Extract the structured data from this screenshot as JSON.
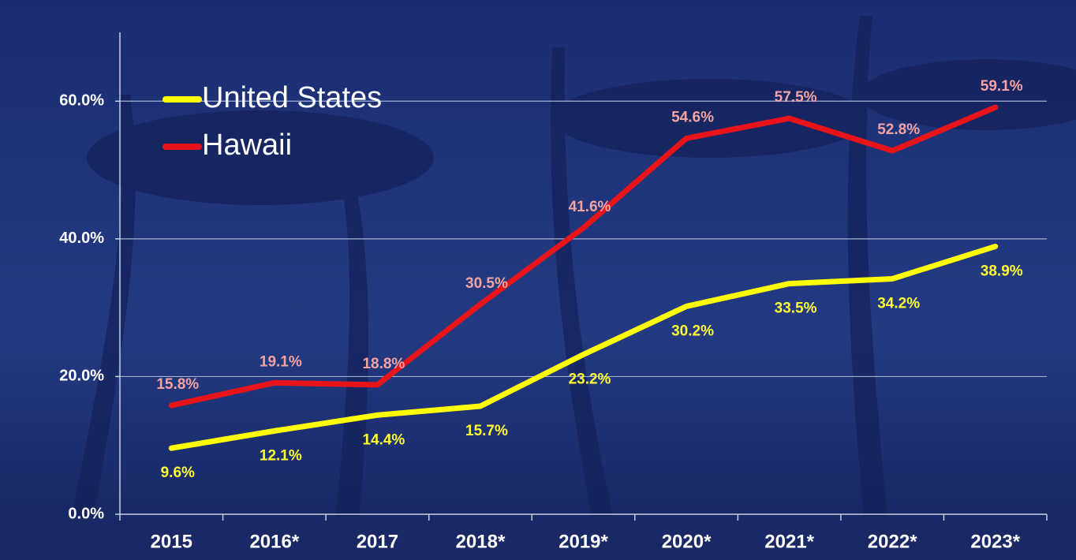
{
  "chart_data": {
    "type": "line",
    "categories": [
      "2015",
      "2016*",
      "2017",
      "2018*",
      "2019*",
      "2020*",
      "2021*",
      "2022*",
      "2023*"
    ],
    "series": [
      {
        "name": "United States",
        "color": "#ffff00",
        "label_color": "#ffff33",
        "values": [
          9.6,
          12.1,
          14.4,
          15.7,
          23.2,
          30.2,
          33.5,
          34.2,
          38.9
        ],
        "value_labels": [
          "9.6%",
          "12.1%",
          "14.4%",
          "15.7%",
          "23.2%",
          "30.2%",
          "33.5%",
          "34.2%",
          "38.9%"
        ]
      },
      {
        "name": "Hawaii",
        "color": "#e8141a",
        "label_color": "#f4a3a3",
        "values": [
          15.8,
          19.1,
          18.8,
          30.5,
          41.6,
          54.6,
          57.5,
          52.8,
          59.1
        ],
        "value_labels": [
          "15.8%",
          "19.1%",
          "18.8%",
          "30.5%",
          "41.6%",
          "54.6%",
          "57.5%",
          "52.8%",
          "59.1%"
        ]
      }
    ],
    "ylim": [
      0,
      70
    ],
    "yticks": [
      {
        "value": 0,
        "label": "0.0%"
      },
      {
        "value": 20,
        "label": "20.0%"
      },
      {
        "value": 40,
        "label": "40.0%"
      },
      {
        "value": 60,
        "label": "60.0%"
      }
    ],
    "grid": true,
    "legend": "upper left"
  }
}
